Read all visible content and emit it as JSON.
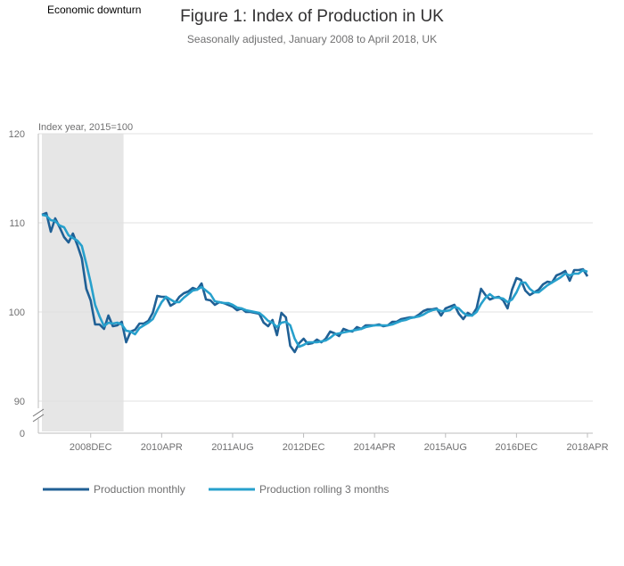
{
  "chart_data": {
    "type": "line",
    "title": "Figure 1: Index of Production in UK",
    "subtitle": "Seasonally adjusted, January 2008 to April 2018, UK",
    "ylabel": "Index year, 2015=100",
    "xlabel": "",
    "y_ticks": [
      "120",
      "110",
      "100",
      "90",
      "0"
    ],
    "y_tick_values": [
      120,
      110,
      100,
      90
    ],
    "ylim": [
      88,
      120
    ],
    "axis_break": true,
    "x_ticks": [
      "2008DEC",
      "2010APR",
      "2011AUG",
      "2012DEC",
      "2014APR",
      "2015AUG",
      "2016DEC",
      "2018APR"
    ],
    "x_tick_index": [
      11,
      27,
      43,
      59,
      75,
      91,
      107,
      123
    ],
    "x_start": "2008JAN",
    "x_end": "2018APR",
    "grid": "horizontal",
    "shaded_region": {
      "label": "Economic downturn",
      "from": "2008JAN",
      "to": "2009JUN",
      "color": "#e6e6e6"
    },
    "legend_position": "bottom",
    "series": [
      {
        "name": "Production monthly",
        "color": "#206095",
        "values": [
          110.9,
          111.1,
          109.0,
          110.5,
          109.5,
          108.4,
          107.8,
          108.8,
          107.5,
          106.0,
          102.6,
          101.3,
          98.6,
          98.6,
          98.1,
          99.6,
          98.4,
          98.5,
          98.9,
          96.6,
          97.8,
          98.0,
          98.7,
          98.7,
          99.0,
          99.9,
          101.8,
          101.7,
          101.7,
          100.7,
          101.0,
          101.7,
          102.1,
          102.3,
          102.7,
          102.5,
          103.2,
          101.4,
          101.3,
          100.8,
          101.1,
          101.0,
          100.8,
          100.6,
          100.2,
          100.4,
          100.0,
          100.0,
          99.9,
          99.8,
          98.8,
          98.4,
          99.1,
          97.4,
          99.9,
          99.4,
          96.2,
          95.5,
          96.5,
          97.0,
          96.4,
          96.5,
          96.9,
          96.6,
          97.0,
          97.8,
          97.6,
          97.3,
          98.1,
          97.9,
          97.8,
          98.3,
          98.1,
          98.5,
          98.5,
          98.5,
          98.6,
          98.4,
          98.5,
          98.9,
          98.9,
          99.2,
          99.3,
          99.4,
          99.4,
          99.7,
          100.1,
          100.3,
          100.3,
          100.4,
          99.6,
          100.4,
          100.6,
          100.8,
          99.8,
          99.2,
          99.9,
          99.6,
          100.4,
          102.6,
          101.9,
          101.4,
          101.6,
          101.7,
          101.3,
          100.4,
          102.5,
          103.8,
          103.6,
          102.4,
          101.9,
          102.2,
          102.5,
          103.1,
          103.4,
          103.3,
          104.1,
          104.3,
          104.6,
          103.5,
          104.7,
          104.7,
          104.8,
          104.0
        ]
      },
      {
        "name": "Production rolling 3 months",
        "color": "#27a0cc",
        "values": [
          110.9,
          110.8,
          110.3,
          110.2,
          109.7,
          109.5,
          108.6,
          108.3,
          108.0,
          107.4,
          105.4,
          103.3,
          100.8,
          99.5,
          98.4,
          98.8,
          98.7,
          98.8,
          98.6,
          97.9,
          97.8,
          97.5,
          98.2,
          98.5,
          98.8,
          99.2,
          100.2,
          101.1,
          101.7,
          101.4,
          101.1,
          101.1,
          101.6,
          102.0,
          102.4,
          102.5,
          102.8,
          102.4,
          102.0,
          101.2,
          101.1,
          101.0,
          101.0,
          100.8,
          100.5,
          100.4,
          100.2,
          100.1,
          100.0,
          99.9,
          99.5,
          99.0,
          98.8,
          98.3,
          98.8,
          98.9,
          98.5,
          97.0,
          96.1,
          96.3,
          96.6,
          96.6,
          96.6,
          96.7,
          96.8,
          97.1,
          97.5,
          97.6,
          97.7,
          97.8,
          97.9,
          98.0,
          98.1,
          98.3,
          98.4,
          98.5,
          98.5,
          98.5,
          98.5,
          98.6,
          98.8,
          99.0,
          99.1,
          99.3,
          99.4,
          99.5,
          99.7,
          100.0,
          100.2,
          100.3,
          100.1,
          100.1,
          100.2,
          100.6,
          100.4,
          99.9,
          99.6,
          99.6,
          100.0,
          100.9,
          101.6,
          102.0,
          101.6,
          101.6,
          101.5,
          101.1,
          101.4,
          102.2,
          103.3,
          103.3,
          102.6,
          102.2,
          102.2,
          102.6,
          103.0,
          103.3,
          103.6,
          103.9,
          104.3,
          104.1,
          104.3,
          104.3,
          104.7,
          104.5
        ]
      }
    ]
  }
}
